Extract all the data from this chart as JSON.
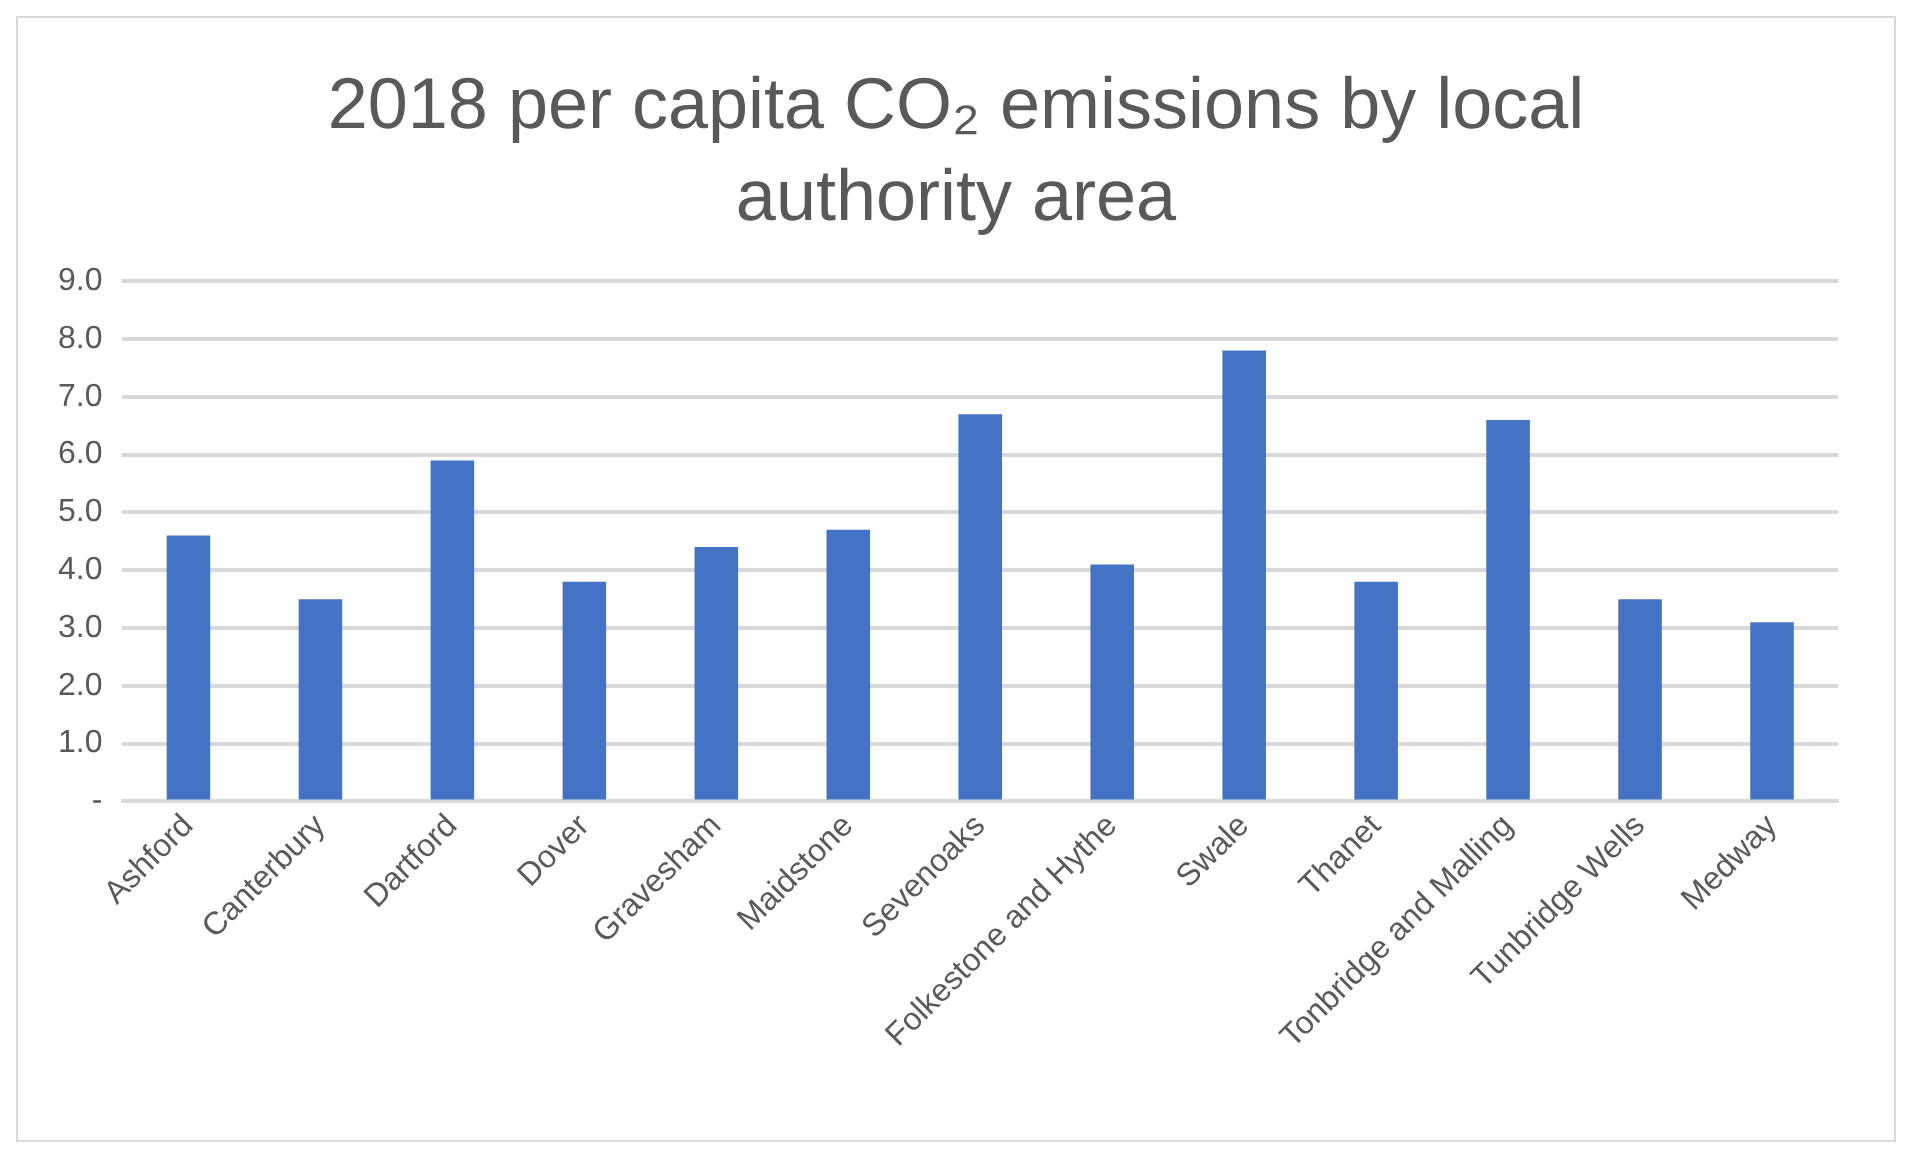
{
  "chart_data": {
    "type": "bar",
    "title": "2018 per capita CO₂ emissions by local authority area",
    "categories": [
      "Ashford",
      "Canterbury",
      "Dartford",
      "Dover",
      "Gravesham",
      "Maidstone",
      "Sevenoaks",
      "Folkestone and Hythe",
      "Swale",
      "Thanet",
      "Tonbridge and Malling",
      "Tunbridge Wells",
      "Medway"
    ],
    "values": [
      4.6,
      3.5,
      5.9,
      3.8,
      4.4,
      4.7,
      6.7,
      4.1,
      7.8,
      3.8,
      6.6,
      3.5,
      3.1
    ],
    "color": "#4472c4",
    "ylim": [
      0,
      9
    ],
    "yticks": [
      {
        "value": 0,
        "label": "-"
      },
      {
        "value": 1,
        "label": "1.0"
      },
      {
        "value": 2,
        "label": "2.0"
      },
      {
        "value": 3,
        "label": "3.0"
      },
      {
        "value": 4,
        "label": "4.0"
      },
      {
        "value": 5,
        "label": "5.0"
      },
      {
        "value": 6,
        "label": "6.0"
      },
      {
        "value": 7,
        "label": "7.0"
      },
      {
        "value": 8,
        "label": "8.0"
      },
      {
        "value": 9,
        "label": "9.0"
      }
    ],
    "grid": "y",
    "legend": false
  }
}
